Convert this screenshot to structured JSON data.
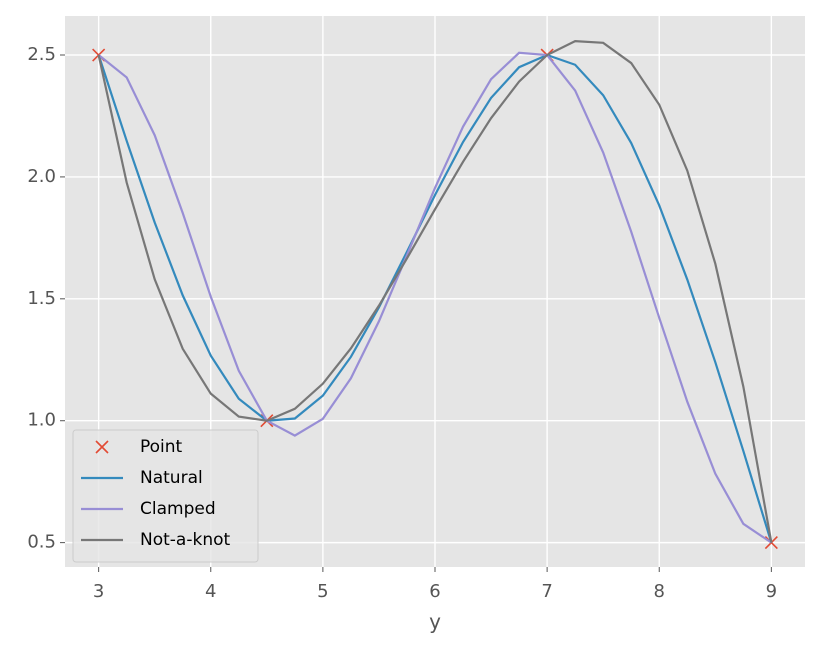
{
  "chart_data": {
    "type": "line",
    "xlabel": "y",
    "x": [
      3,
      3.25,
      3.5,
      3.75,
      4,
      4.25,
      4.5,
      4.75,
      5,
      5.25,
      5.5,
      5.75,
      6,
      6.25,
      6.5,
      6.75,
      7,
      7.25,
      7.5,
      7.75,
      8,
      8.25,
      8.5,
      8.75,
      9
    ],
    "series": [
      {
        "name": "Point",
        "color": "#E24A33",
        "marker": "x",
        "line": false,
        "values": [
          2.5,
          null,
          null,
          null,
          null,
          null,
          1,
          null,
          null,
          null,
          null,
          null,
          null,
          null,
          null,
          null,
          2.5,
          null,
          null,
          null,
          null,
          null,
          null,
          null,
          0.5
        ]
      },
      {
        "name": "Natural",
        "color": "#348ABD",
        "marker": null,
        "line": true,
        "values": [
          2.5,
          2.148,
          1.813,
          1.514,
          1.267,
          1.09,
          1,
          1.009,
          1.103,
          1.262,
          1.465,
          1.693,
          1.926,
          2.143,
          2.324,
          2.45,
          2.5,
          2.46,
          2.335,
          2.139,
          1.883,
          1.579,
          1.24,
          0.876,
          0.5
        ]
      },
      {
        "name": "Clamped",
        "color": "#988ED5",
        "marker": null,
        "line": true,
        "values": [
          2.5,
          2.408,
          2.171,
          1.852,
          1.509,
          1.205,
          1,
          0.939,
          1.008,
          1.174,
          1.408,
          1.679,
          1.955,
          2.206,
          2.401,
          2.509,
          2.5,
          2.354,
          2.1,
          1.775,
          1.422,
          1.078,
          0.783,
          0.577,
          0.5
        ]
      },
      {
        "name": "Not-a-knot",
        "color": "#777777",
        "marker": null,
        "line": true,
        "values": [
          2.5,
          1.977,
          1.58,
          1.295,
          1.111,
          1.017,
          1,
          1.049,
          1.152,
          1.297,
          1.472,
          1.666,
          1.867,
          2.062,
          2.241,
          2.391,
          2.5,
          2.557,
          2.55,
          2.467,
          2.296,
          2.026,
          1.644,
          1.14,
          0.5
        ]
      }
    ],
    "xlim": [
      2.7,
      9.3
    ],
    "xticks": [
      3,
      4,
      5,
      6,
      7,
      8,
      9
    ],
    "ylim": [
      0.4,
      2.66
    ],
    "yticks": [
      {
        "value": 0.5,
        "label": "0.5"
      },
      {
        "value": 1,
        "label": "1.0"
      },
      {
        "value": 1.5,
        "label": "1.5"
      },
      {
        "value": 2,
        "label": "2.0"
      },
      {
        "value": 2.5,
        "label": "2.5"
      }
    ],
    "grid": true,
    "legend": "lower left"
  }
}
